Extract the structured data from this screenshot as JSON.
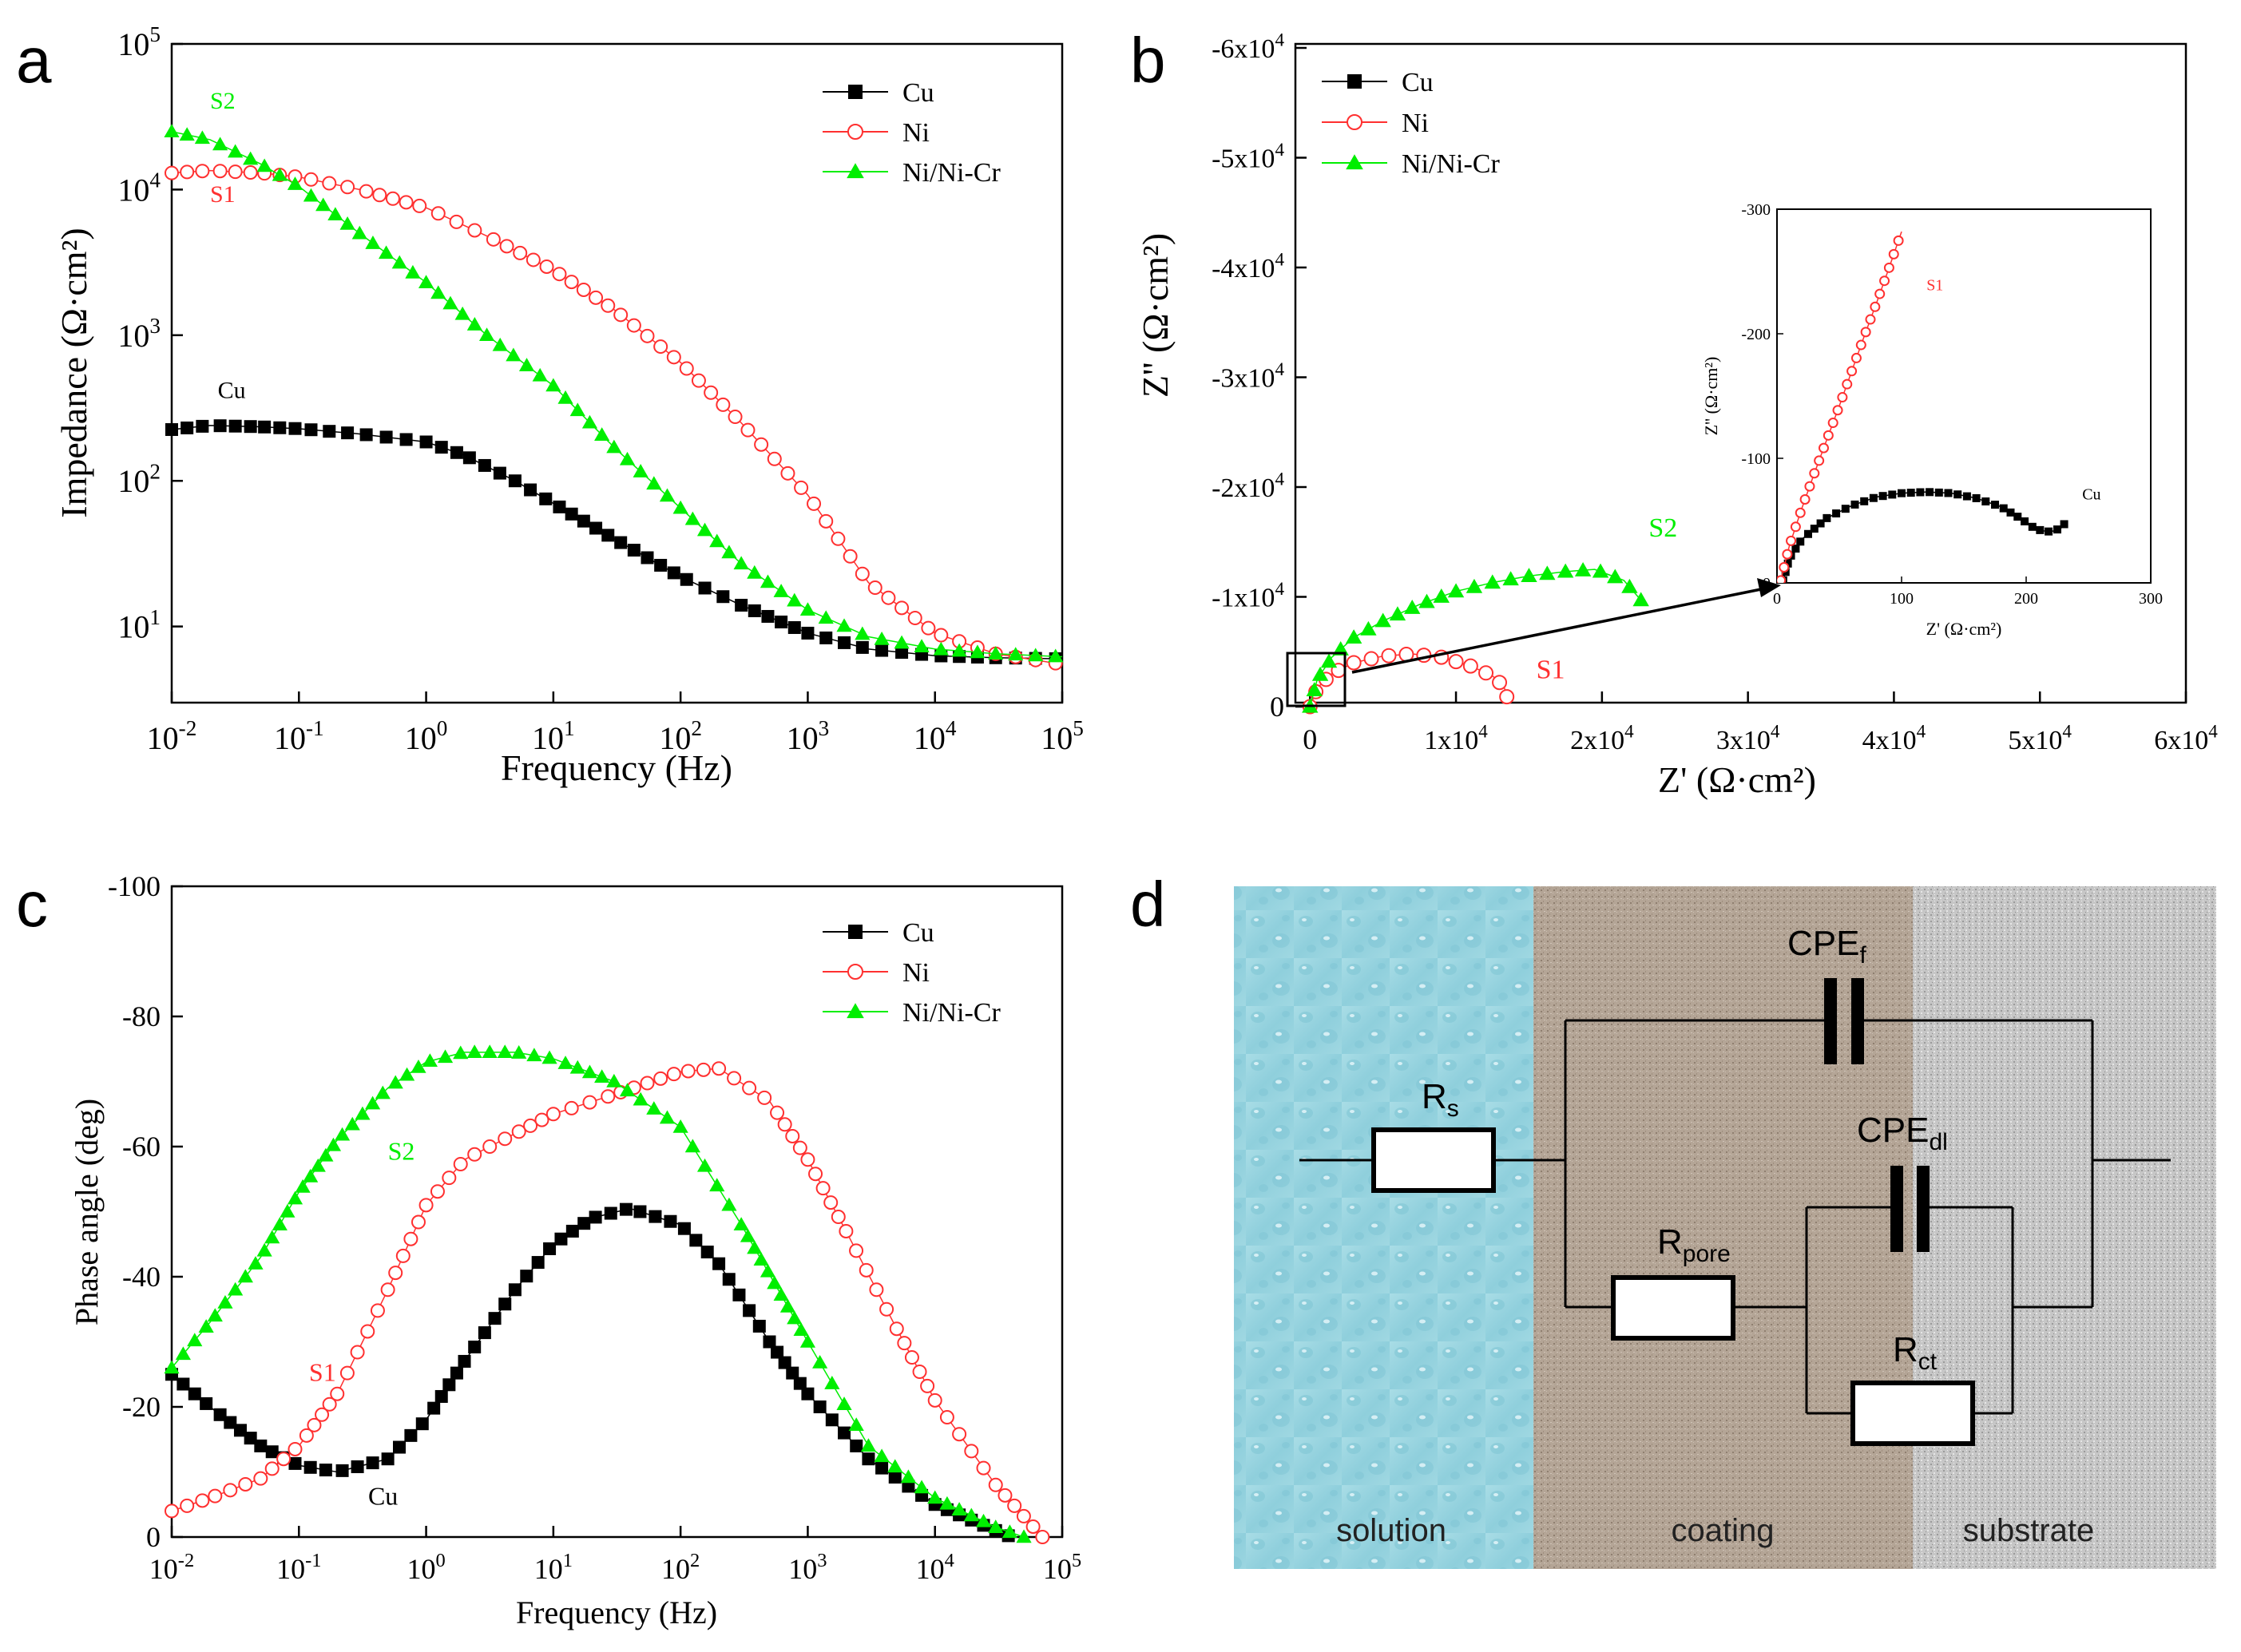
{
  "colors": {
    "cu": "#000000",
    "ni": "#ff3030",
    "nicr": "#00ee00",
    "axis": "#000000"
  },
  "chart_data": [
    {
      "id": "a",
      "type": "line",
      "panel_label": "a",
      "xlabel": "Frequency (Hz)",
      "ylabel": "Impedance (Ω·cm²)",
      "xscale": "log",
      "yscale": "log",
      "xlim": [
        0.01,
        100000
      ],
      "ylim": [
        3,
        100000
      ],
      "x_ticks": [
        {
          "b": "10",
          "e": "-2"
        },
        {
          "b": "10",
          "e": "-1"
        },
        {
          "b": "10",
          "e": "0"
        },
        {
          "b": "10",
          "e": "1"
        },
        {
          "b": "10",
          "e": "2"
        },
        {
          "b": "10",
          "e": "3"
        },
        {
          "b": "10",
          "e": "4"
        },
        {
          "b": "10",
          "e": "5"
        }
      ],
      "y_ticks": [
        {
          "b": "10",
          "e": "1"
        },
        {
          "b": "10",
          "e": "2"
        },
        {
          "b": "10",
          "e": "3"
        },
        {
          "b": "10",
          "e": "4"
        },
        {
          "b": "10",
          "e": "5"
        }
      ],
      "legend_position": "top-right",
      "series": [
        {
          "name": "Cu",
          "marker": "square",
          "color_key": "cu",
          "points": [
            [
              0.01,
              225
            ],
            [
              0.02,
              240
            ],
            [
              0.05,
              235
            ],
            [
              0.1,
              228
            ],
            [
              0.3,
              210
            ],
            [
              1,
              185
            ],
            [
              2,
              150
            ],
            [
              5,
              100
            ],
            [
              10,
              70
            ],
            [
              30,
              40
            ],
            [
              100,
              22
            ],
            [
              300,
              14
            ],
            [
              1000,
              9
            ],
            [
              3000,
              7
            ],
            [
              10000,
              6.3
            ],
            [
              30000,
              6.1
            ],
            [
              100000,
              6
            ]
          ]
        },
        {
          "name": "Ni",
          "marker": "circle",
          "color_key": "ni",
          "points": [
            [
              0.01,
              13000
            ],
            [
              0.02,
              13500
            ],
            [
              0.05,
              13000
            ],
            [
              0.1,
              12200
            ],
            [
              0.3,
              10000
            ],
            [
              1,
              7500
            ],
            [
              3,
              4800
            ],
            [
              10,
              2800
            ],
            [
              30,
              1500
            ],
            [
              100,
              650
            ],
            [
              300,
              250
            ],
            [
              1000,
              80
            ],
            [
              3000,
              20
            ],
            [
              10000,
              9
            ],
            [
              30000,
              6.5
            ],
            [
              100000,
              5.5
            ]
          ]
        },
        {
          "name": "Ni/Ni-Cr",
          "marker": "triangle",
          "color_key": "nicr",
          "points": [
            [
              0.01,
              25000
            ],
            [
              0.02,
              22000
            ],
            [
              0.05,
              15000
            ],
            [
              0.1,
              10500
            ],
            [
              0.3,
              5000
            ],
            [
              1,
              2300
            ],
            [
              3,
              1000
            ],
            [
              10,
              450
            ],
            [
              30,
              170
            ],
            [
              100,
              65
            ],
            [
              300,
              27
            ],
            [
              1000,
              13
            ],
            [
              3000,
              8.5
            ],
            [
              10000,
              7
            ],
            [
              30000,
              6.5
            ],
            [
              100000,
              6.2
            ]
          ]
        }
      ],
      "annotations": [
        {
          "text": "S2",
          "color_key": "nicr",
          "x": 0.02,
          "y": 36000
        },
        {
          "text": "S1",
          "color_key": "ni",
          "x": 0.02,
          "y": 8200
        },
        {
          "text": "Cu",
          "color_key": "cu",
          "x": 0.023,
          "y": 370
        }
      ]
    },
    {
      "id": "b",
      "type": "scatter",
      "panel_label": "b",
      "xlabel": "Z' (Ω·cm²)",
      "ylabel": "Z'' (Ω·cm²)",
      "xlim": [
        -1000,
        60000
      ],
      "ylim": [
        0,
        -60000
      ],
      "x_ticks": [
        {
          "v": 0,
          "t": "0"
        },
        {
          "v": 10000,
          "m": "1",
          "e": "4"
        },
        {
          "v": 20000,
          "m": "2",
          "e": "4"
        },
        {
          "v": 30000,
          "m": "3",
          "e": "4"
        },
        {
          "v": 40000,
          "m": "4",
          "e": "4"
        },
        {
          "v": 50000,
          "m": "5",
          "e": "4"
        },
        {
          "v": 60000,
          "m": "6",
          "e": "4"
        }
      ],
      "y_ticks": [
        {
          "v": 0,
          "t": "0"
        },
        {
          "v": -10000,
          "m": "-1",
          "e": "4"
        },
        {
          "v": -20000,
          "m": "-2",
          "e": "4"
        },
        {
          "v": -30000,
          "m": "-3",
          "e": "4"
        },
        {
          "v": -40000,
          "m": "-4",
          "e": "4"
        },
        {
          "v": -50000,
          "m": "-5",
          "e": "4"
        },
        {
          "v": -60000,
          "m": "-6",
          "e": "4"
        }
      ],
      "legend_position": "top-left",
      "series": [
        {
          "name": "Cu",
          "marker": "square",
          "color_key": "cu",
          "points": [
            [
              10,
              -20
            ],
            [
              120,
              -75
            ],
            [
              230,
              -45
            ]
          ]
        },
        {
          "name": "Ni",
          "marker": "circle",
          "color_key": "ni",
          "points": [
            [
              0,
              0
            ],
            [
              500,
              -1700
            ],
            [
              1500,
              -3000
            ],
            [
              3000,
              -4000
            ],
            [
              5000,
              -4600
            ],
            [
              7000,
              -4800
            ],
            [
              9000,
              -4500
            ],
            [
              11000,
              -3700
            ],
            [
              12500,
              -2800
            ],
            [
              13300,
              -1800
            ],
            [
              13500,
              -800
            ]
          ]
        },
        {
          "name": "Ni/Ni-Cr",
          "marker": "triangle",
          "color_key": "nicr",
          "points": [
            [
              0,
              0
            ],
            [
              500,
              -2500
            ],
            [
              1500,
              -4500
            ],
            [
              3000,
              -6300
            ],
            [
              5000,
              -7800
            ],
            [
              7500,
              -9300
            ],
            [
              10000,
              -10500
            ],
            [
              12500,
              -11300
            ],
            [
              15000,
              -11900
            ],
            [
              17500,
              -12300
            ],
            [
              19500,
              -12500
            ],
            [
              21500,
              -11500
            ],
            [
              22800,
              -9500
            ]
          ]
        }
      ],
      "annotations": [
        {
          "text": "S2",
          "color_key": "nicr",
          "x": 23200,
          "y": -15500
        },
        {
          "text": "S1",
          "color_key": "ni",
          "x": 15500,
          "y": -2600
        }
      ],
      "inset": {
        "xlabel": "Z' (Ω·cm²)",
        "ylabel": "Z'' (Ω·cm²)",
        "xlim": [
          0,
          300
        ],
        "ylim": [
          0,
          -300
        ],
        "x_ticks": [
          0,
          100,
          200,
          300
        ],
        "y_ticks": [
          0,
          -100,
          -200,
          -300
        ],
        "series": [
          {
            "name": "Cu",
            "marker": "square",
            "color_key": "cu",
            "points": [
              [
                5,
                -2
              ],
              [
                10,
                -20
              ],
              [
                20,
                -35
              ],
              [
                40,
                -52
              ],
              [
                60,
                -62
              ],
              [
                80,
                -69
              ],
              [
                100,
                -72
              ],
              [
                120,
                -73
              ],
              [
                140,
                -72
              ],
              [
                160,
                -68
              ],
              [
                180,
                -61
              ],
              [
                195,
                -52
              ],
              [
                205,
                -45
              ],
              [
                212,
                -42
              ],
              [
                220,
                -41
              ],
              [
                228,
                -44
              ],
              [
                232,
                -49
              ]
            ]
          },
          {
            "name": "Ni",
            "marker": "circle",
            "color_key": "ni",
            "points": [
              [
                3,
                -2
              ],
              [
                10,
                -30
              ],
              [
                20,
                -60
              ],
              [
                30,
                -88
              ],
              [
                40,
                -115
              ],
              [
                50,
                -142
              ],
              [
                60,
                -170
              ],
              [
                70,
                -198
              ],
              [
                80,
                -225
              ],
              [
                90,
                -253
              ],
              [
                100,
                -282
              ]
            ]
          }
        ],
        "annotations": [
          {
            "text": "S1",
            "color_key": "ni",
            "x": 120,
            "y": -235
          },
          {
            "text": "Cu",
            "color_key": "cu",
            "x": 245,
            "y": -67
          }
        ]
      }
    },
    {
      "id": "c",
      "type": "line",
      "panel_label": "c",
      "xlabel": "Frequency (Hz)",
      "ylabel": "Phase angle (deg)",
      "xscale": "log",
      "xlim": [
        0.01,
        100000
      ],
      "ylim": [
        0,
        -100
      ],
      "x_ticks": [
        {
          "b": "10",
          "e": "-2"
        },
        {
          "b": "10",
          "e": "-1"
        },
        {
          "b": "10",
          "e": "0"
        },
        {
          "b": "10",
          "e": "1"
        },
        {
          "b": "10",
          "e": "2"
        },
        {
          "b": "10",
          "e": "3"
        },
        {
          "b": "10",
          "e": "4"
        },
        {
          "b": "10",
          "e": "5"
        }
      ],
      "y_ticks": [
        0,
        -20,
        -40,
        -60,
        -80,
        -100
      ],
      "legend_position": "top-right",
      "series": [
        {
          "name": "Cu",
          "marker": "square",
          "color_key": "cu",
          "points": [
            [
              0.01,
              -25
            ],
            [
              0.02,
              -20
            ],
            [
              0.05,
              -14
            ],
            [
              0.1,
              -11
            ],
            [
              0.2,
              -10
            ],
            [
              0.5,
              -12
            ],
            [
              1,
              -18
            ],
            [
              2,
              -27
            ],
            [
              5,
              -38
            ],
            [
              10,
              -45
            ],
            [
              20,
              -49
            ],
            [
              40,
              -50.5
            ],
            [
              100,
              -48
            ],
            [
              200,
              -42
            ],
            [
              500,
              -30
            ],
            [
              1000,
              -22
            ],
            [
              3000,
              -12
            ],
            [
              10000,
              -5
            ],
            [
              30000,
              -1
            ],
            [
              40000,
              0
            ]
          ]
        },
        {
          "name": "Ni",
          "marker": "circle",
          "color_key": "ni",
          "points": [
            [
              0.01,
              -4
            ],
            [
              0.02,
              -6
            ],
            [
              0.05,
              -9
            ],
            [
              0.1,
              -14
            ],
            [
              0.2,
              -22
            ],
            [
              0.5,
              -38
            ],
            [
              1,
              -51
            ],
            [
              2,
              -58
            ],
            [
              5,
              -62
            ],
            [
              10,
              -65
            ],
            [
              30,
              -68
            ],
            [
              100,
              -71.5
            ],
            [
              200,
              -72
            ],
            [
              500,
              -67
            ],
            [
              1000,
              -58
            ],
            [
              2000,
              -47
            ],
            [
              5000,
              -32
            ],
            [
              10000,
              -21
            ],
            [
              30000,
              -8
            ],
            [
              70000,
              0
            ]
          ]
        },
        {
          "name": "Ni/Ni-Cr",
          "marker": "triangle",
          "color_key": "nicr",
          "points": [
            [
              0.01,
              -26
            ],
            [
              0.02,
              -33
            ],
            [
              0.05,
              -43
            ],
            [
              0.1,
              -53
            ],
            [
              0.2,
              -61
            ],
            [
              0.5,
              -69
            ],
            [
              1,
              -73
            ],
            [
              2,
              -74.5
            ],
            [
              5,
              -74.5
            ],
            [
              10,
              -73.5
            ],
            [
              30,
              -70
            ],
            [
              100,
              -63
            ],
            [
              300,
              -48
            ],
            [
              1000,
              -30
            ],
            [
              3000,
              -14
            ],
            [
              10000,
              -6
            ],
            [
              30000,
              -1.5
            ],
            [
              50000,
              0
            ]
          ]
        }
      ],
      "annotations": [
        {
          "text": "S2",
          "color_key": "nicr",
          "x": 0.5,
          "y": -58
        },
        {
          "text": "S1",
          "color_key": "ni",
          "x": 0.12,
          "y": -24
        },
        {
          "text": "Cu",
          "color_key": "cu",
          "x": 0.35,
          "y": -5
        }
      ]
    }
  ],
  "circuit": {
    "panel_label": "d",
    "regions": {
      "solution": "solution",
      "coating": "coating",
      "substrate": "substrate"
    },
    "components": {
      "rs": {
        "base": "R",
        "sub": "s"
      },
      "rpore": {
        "base": "R",
        "sub": "pore"
      },
      "rct": {
        "base": "R",
        "sub": "ct"
      },
      "cpef": {
        "base": "CPE",
        "sub": "f"
      },
      "cpedl": {
        "base": "CPE",
        "sub": "dl"
      }
    }
  }
}
